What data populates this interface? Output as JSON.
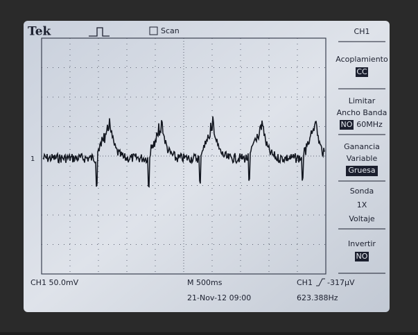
{
  "header": {
    "brand": "Tek",
    "mode": "Scan"
  },
  "menu": {
    "title": "CH1",
    "items": [
      {
        "label": "Acoplamiento",
        "value": "CC"
      },
      {
        "label": [
          "Limitar",
          "Ancho Banda"
        ],
        "value": "NO",
        "extra": "60MHz"
      },
      {
        "label": [
          "Ganancia",
          "Variable"
        ],
        "value": "Gruesa"
      },
      {
        "label": [
          "Sonda",
          "1X",
          "Voltaje"
        ]
      },
      {
        "label": "Invertir",
        "value": "NO"
      }
    ]
  },
  "marker": "1",
  "status": {
    "channel": "CH1 50.0mV",
    "timebase": "M 500ms",
    "trigger": "CH1",
    "trigger_level": "-317µV",
    "datetime": "21-Nov-12 09:00",
    "frequency": "623.388Hz"
  }
}
